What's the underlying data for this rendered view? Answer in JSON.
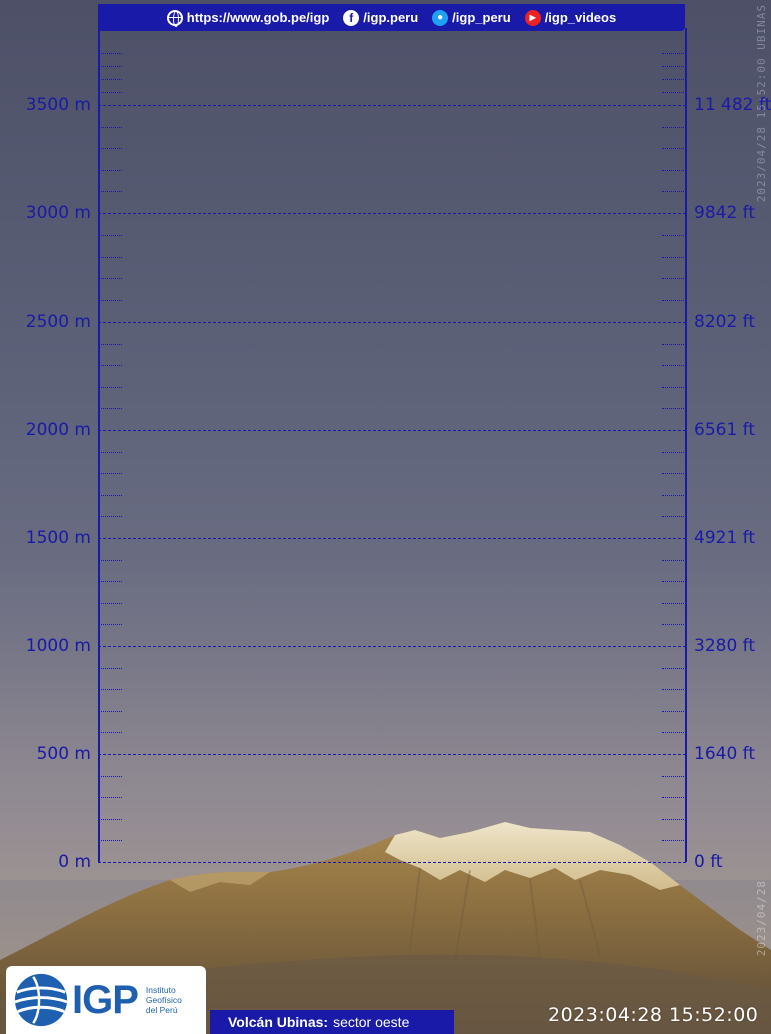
{
  "header": {
    "website": "https://www.gob.pe/igp",
    "facebook": "/igp.peru",
    "twitter": "/igp_peru",
    "youtube": "/igp_videos"
  },
  "scale": {
    "left_labels": [
      "3500 m",
      "3000 m",
      "2500 m",
      "2000 m",
      "1500 m",
      "1000 m",
      "500 m",
      "0 m"
    ],
    "right_labels": [
      "11 482 ft",
      "9842 ft",
      "8202 ft",
      "6561 ft",
      "4921 ft",
      "3280 ft",
      "1640 ft",
      "0 ft"
    ]
  },
  "logo": {
    "name": "IGP",
    "subtitle_line1": "Instituto",
    "subtitle_line2": "Geofísico",
    "subtitle_line3": "del Perú"
  },
  "caption": {
    "volcano": "Volcán Ubinas:",
    "sector": "sector oeste"
  },
  "timestamp": "2023:04:28 15:52:00",
  "watermark_top": "2023/04/28 15:52:00 UBINAS",
  "watermark_bottom": "2023/04/28",
  "colors": {
    "accent": "#1a1aa8",
    "sky": "#5c6178",
    "mountain": "#8a6f3f",
    "snow": "#f0e6c8",
    "logo": "#1e5fb0"
  }
}
